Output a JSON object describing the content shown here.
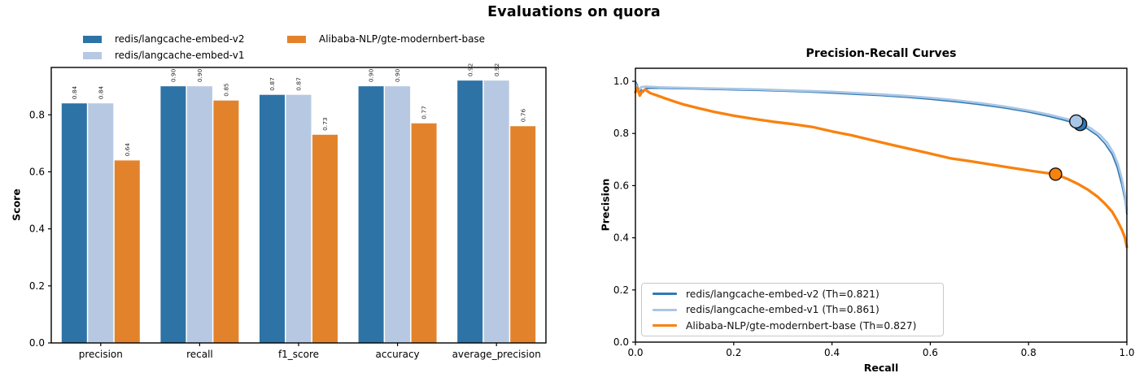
{
  "figure": {
    "title": "Evaluations on quora",
    "background": "#ffffff"
  },
  "chart_data": [
    {
      "type": "bar",
      "title": "",
      "xlabel": "",
      "ylabel": "Score",
      "ylim": [
        0,
        0.966
      ],
      "yticks": [
        0.0,
        0.2,
        0.4,
        0.6,
        0.8
      ],
      "grid": false,
      "legend_position": "above-axes, two columns",
      "bar_value_labels_rotation": 90,
      "categories": [
        "precision",
        "recall",
        "f1_score",
        "accuracy",
        "average_precision"
      ],
      "series": [
        {
          "name": "redis/langcache-embed-v2",
          "color": "#2e73a6",
          "values": [
            0.84,
            0.9,
            0.87,
            0.9,
            0.92
          ]
        },
        {
          "name": "redis/langcache-embed-v1",
          "color": "#b7c9e2",
          "values": [
            0.84,
            0.9,
            0.87,
            0.9,
            0.92
          ]
        },
        {
          "name": "Alibaba-NLP/gte-modernbert-base",
          "color": "#e2832c",
          "values": [
            0.64,
            0.85,
            0.73,
            0.77,
            0.76
          ]
        }
      ]
    },
    {
      "type": "line",
      "title": "Precision-Recall Curves",
      "xlabel": "Recall",
      "ylabel": "Precision",
      "xlim": [
        0.0,
        1.0
      ],
      "ylim": [
        0.0,
        1.05
      ],
      "xticks": [
        0.0,
        0.2,
        0.4,
        0.6,
        0.8,
        1.0
      ],
      "yticks": [
        0.0,
        0.2,
        0.4,
        0.6,
        0.8,
        1.0
      ],
      "grid": false,
      "legend_position": "lower left",
      "series": [
        {
          "name": "redis/langcache-embed-v2 (Th=0.821)",
          "color": "#2f7ab5",
          "line_width": 1.7,
          "threshold_point": {
            "recall": 0.905,
            "precision": 0.836
          },
          "marker_radius": 8,
          "points": [
            [
              0,
              1.0
            ],
            [
              0.004,
              0.985
            ],
            [
              0.008,
              0.955
            ],
            [
              0.012,
              0.968
            ],
            [
              0.016,
              0.958
            ],
            [
              0.02,
              0.972
            ],
            [
              0.03,
              0.973
            ],
            [
              0.05,
              0.973
            ],
            [
              0.08,
              0.972
            ],
            [
              0.12,
              0.971
            ],
            [
              0.16,
              0.969
            ],
            [
              0.2,
              0.967
            ],
            [
              0.25,
              0.965
            ],
            [
              0.3,
              0.962
            ],
            [
              0.35,
              0.959
            ],
            [
              0.4,
              0.955
            ],
            [
              0.45,
              0.95
            ],
            [
              0.5,
              0.945
            ],
            [
              0.55,
              0.939
            ],
            [
              0.6,
              0.931
            ],
            [
              0.65,
              0.922
            ],
            [
              0.7,
              0.911
            ],
            [
              0.75,
              0.898
            ],
            [
              0.8,
              0.882
            ],
            [
              0.84,
              0.866
            ],
            [
              0.87,
              0.852
            ],
            [
              0.9,
              0.836
            ],
            [
              0.92,
              0.818
            ],
            [
              0.94,
              0.792
            ],
            [
              0.955,
              0.762
            ],
            [
              0.97,
              0.72
            ],
            [
              0.98,
              0.672
            ],
            [
              0.99,
              0.6
            ],
            [
              0.996,
              0.545
            ],
            [
              1.0,
              0.49
            ]
          ]
        },
        {
          "name": "redis/langcache-embed-v1 (Th=0.861)",
          "color": "#aac6e6",
          "line_width": 2.7,
          "threshold_point": {
            "recall": 0.897,
            "precision": 0.846
          },
          "marker_radius": 8,
          "points": [
            [
              0,
              0.99
            ],
            [
              0.006,
              0.968
            ],
            [
              0.012,
              0.978
            ],
            [
              0.02,
              0.98
            ],
            [
              0.05,
              0.977
            ],
            [
              0.1,
              0.975
            ],
            [
              0.15,
              0.973
            ],
            [
              0.2,
              0.971
            ],
            [
              0.25,
              0.969
            ],
            [
              0.3,
              0.966
            ],
            [
              0.35,
              0.963
            ],
            [
              0.4,
              0.96
            ],
            [
              0.45,
              0.955
            ],
            [
              0.5,
              0.95
            ],
            [
              0.55,
              0.944
            ],
            [
              0.6,
              0.937
            ],
            [
              0.65,
              0.928
            ],
            [
              0.7,
              0.917
            ],
            [
              0.75,
              0.904
            ],
            [
              0.8,
              0.888
            ],
            [
              0.84,
              0.873
            ],
            [
              0.87,
              0.859
            ],
            [
              0.9,
              0.845
            ],
            [
              0.925,
              0.822
            ],
            [
              0.945,
              0.795
            ],
            [
              0.96,
              0.765
            ],
            [
              0.972,
              0.728
            ],
            [
              0.982,
              0.682
            ],
            [
              0.99,
              0.625
            ],
            [
              0.996,
              0.565
            ],
            [
              1.0,
              0.505
            ]
          ]
        },
        {
          "name": "Alibaba-NLP/gte-modernbert-base (Th=0.827)",
          "color": "#f8820e",
          "line_width": 3.3,
          "threshold_point": {
            "recall": 0.855,
            "precision": 0.644
          },
          "marker_radius": 7.5,
          "points": [
            [
              0,
              0.958
            ],
            [
              0.004,
              0.975
            ],
            [
              0.009,
              0.945
            ],
            [
              0.014,
              0.962
            ],
            [
              0.02,
              0.968
            ],
            [
              0.03,
              0.955
            ],
            [
              0.045,
              0.945
            ],
            [
              0.06,
              0.935
            ],
            [
              0.08,
              0.922
            ],
            [
              0.1,
              0.91
            ],
            [
              0.13,
              0.896
            ],
            [
              0.16,
              0.883
            ],
            [
              0.2,
              0.868
            ],
            [
              0.24,
              0.856
            ],
            [
              0.28,
              0.845
            ],
            [
              0.32,
              0.836
            ],
            [
              0.36,
              0.825
            ],
            [
              0.4,
              0.808
            ],
            [
              0.44,
              0.793
            ],
            [
              0.48,
              0.775
            ],
            [
              0.52,
              0.757
            ],
            [
              0.56,
              0.74
            ],
            [
              0.6,
              0.723
            ],
            [
              0.64,
              0.705
            ],
            [
              0.68,
              0.694
            ],
            [
              0.72,
              0.682
            ],
            [
              0.76,
              0.67
            ],
            [
              0.8,
              0.658
            ],
            [
              0.83,
              0.65
            ],
            [
              0.855,
              0.644
            ],
            [
              0.88,
              0.625
            ],
            [
              0.9,
              0.607
            ],
            [
              0.92,
              0.585
            ],
            [
              0.94,
              0.558
            ],
            [
              0.955,
              0.532
            ],
            [
              0.97,
              0.5
            ],
            [
              0.98,
              0.468
            ],
            [
              0.99,
              0.43
            ],
            [
              0.996,
              0.4
            ],
            [
              1.0,
              0.365
            ]
          ]
        }
      ]
    }
  ]
}
